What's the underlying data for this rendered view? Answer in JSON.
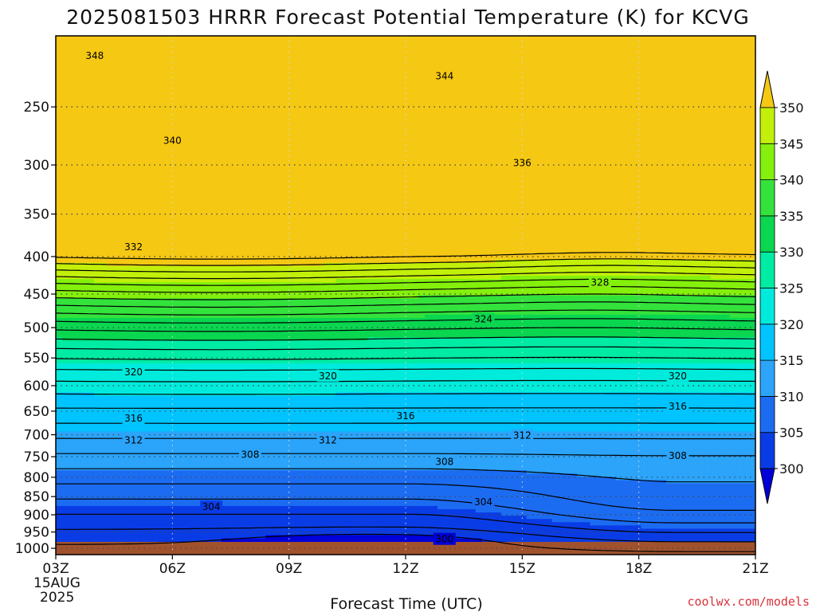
{
  "chart_data": {
    "type": "contour",
    "title": "2025081503 HRRR Forecast Potential Temperature (K) for KCVG",
    "xlabel": "Forecast Time (UTC)",
    "ylabel": "",
    "x_ticks": [
      "03Z",
      "06Z",
      "09Z",
      "12Z",
      "15Z",
      "18Z",
      "21Z"
    ],
    "x_tick_hours": [
      3,
      6,
      9,
      12,
      15,
      18,
      21
    ],
    "x_sublabels": [
      "15AUG",
      "2025"
    ],
    "xlim": [
      3,
      21
    ],
    "y_ticks": [
      250,
      300,
      350,
      400,
      450,
      500,
      550,
      600,
      650,
      700,
      750,
      800,
      850,
      900,
      950,
      1000
    ],
    "y_scale": "log",
    "y_inverted": true,
    "ylim": [
      1020,
      200
    ],
    "ground_level_hpa": 980,
    "grid": "dotted",
    "colorbar": {
      "label_values": [
        300,
        305,
        310,
        315,
        320,
        325,
        330,
        335,
        340,
        345,
        350
      ],
      "bins": [
        {
          "lo": 300,
          "hi": 305,
          "color": "#0a3ce6"
        },
        {
          "lo": 305,
          "hi": 310,
          "color": "#1c6cf2"
        },
        {
          "lo": 310,
          "hi": 315,
          "color": "#2ba4fa"
        },
        {
          "lo": 315,
          "hi": 320,
          "color": "#00c4ff"
        },
        {
          "lo": 320,
          "hi": 325,
          "color": "#00ebdc"
        },
        {
          "lo": 325,
          "hi": 330,
          "color": "#00eba4"
        },
        {
          "lo": 330,
          "hi": 335,
          "color": "#0ad650"
        },
        {
          "lo": 335,
          "hi": 340,
          "color": "#34e23c"
        },
        {
          "lo": 340,
          "hi": 345,
          "color": "#84f00c"
        },
        {
          "lo": 345,
          "hi": 350,
          "color": "#c2f00a"
        }
      ],
      "over_color": "#f5c814",
      "under_color": "#0000d8",
      "top_box_color": "#f5e61e"
    },
    "ground_color": "#a0522d",
    "contour_interval": 2,
    "contour_labels": [
      {
        "value": 348,
        "hour": 4.0,
        "pressure": 213
      },
      {
        "value": 344,
        "hour": 13.0,
        "pressure": 227
      },
      {
        "value": 340,
        "hour": 6.0,
        "pressure": 278
      },
      {
        "value": 336,
        "hour": 15.0,
        "pressure": 298
      },
      {
        "value": 332,
        "hour": 5.0,
        "pressure": 388
      },
      {
        "value": 328,
        "hour": 17.0,
        "pressure": 434
      },
      {
        "value": 324,
        "hour": 14.0,
        "pressure": 487
      },
      {
        "value": 320,
        "hour": 5.0,
        "pressure": 575
      },
      {
        "value": 320,
        "hour": 10.0,
        "pressure": 582
      },
      {
        "value": 320,
        "hour": 19.0,
        "pressure": 582
      },
      {
        "value": 316,
        "hour": 5.0,
        "pressure": 665
      },
      {
        "value": 316,
        "hour": 12.0,
        "pressure": 660
      },
      {
        "value": 316,
        "hour": 19.0,
        "pressure": 640
      },
      {
        "value": 312,
        "hour": 5.0,
        "pressure": 712
      },
      {
        "value": 312,
        "hour": 10.0,
        "pressure": 712
      },
      {
        "value": 312,
        "hour": 15.0,
        "pressure": 702
      },
      {
        "value": 308,
        "hour": 8.0,
        "pressure": 745
      },
      {
        "value": 308,
        "hour": 13.0,
        "pressure": 762
      },
      {
        "value": 308,
        "hour": 19.0,
        "pressure": 748
      },
      {
        "value": 304,
        "hour": 7.0,
        "pressure": 878
      },
      {
        "value": 304,
        "hour": 14.0,
        "pressure": 865
      },
      {
        "value": 300,
        "hour": 13.0,
        "pressure": 972
      }
    ]
  },
  "credit": "coolwx.com/models"
}
